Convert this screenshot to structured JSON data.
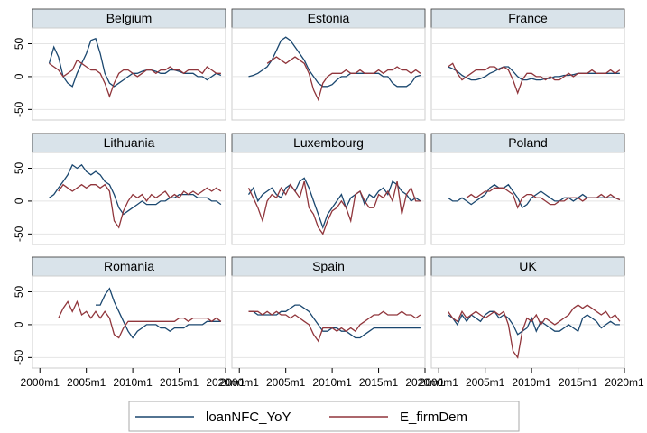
{
  "chart_data": {
    "type": "line",
    "x": [
      2001,
      2001.5,
      2002,
      2002.5,
      2003,
      2003.5,
      2004,
      2004.5,
      2005,
      2005.5,
      2006,
      2006.5,
      2007,
      2007.5,
      2008,
      2008.5,
      2009,
      2009.5,
      2010,
      2010.5,
      2011,
      2011.5,
      2012,
      2012.5,
      2013,
      2013.5,
      2014,
      2014.5,
      2015,
      2015.5,
      2016,
      2016.5,
      2017,
      2017.5,
      2018,
      2018.5,
      2019,
      2019.5
    ],
    "xlim": [
      1999.2,
      2020
    ],
    "xticks": [
      {
        "value": 2000,
        "label": "2000m1"
      },
      {
        "value": 2005,
        "label": "2005m1"
      },
      {
        "value": 2010,
        "label": "2010m1"
      },
      {
        "value": 2015,
        "label": "2015m1"
      },
      {
        "value": 2020,
        "label": "2020m1"
      }
    ],
    "ylim": [
      -66,
      74
    ],
    "yticks": [
      50,
      0,
      -50
    ],
    "grid": true,
    "series": [
      {
        "name": "loanNFC_YoY",
        "color": "#1a476f"
      },
      {
        "name": "E_firmDem",
        "color": "#90353b"
      }
    ],
    "panels": [
      {
        "title": "Belgium",
        "values": [
          [
            20,
            45,
            30,
            0,
            -10,
            -15,
            5,
            20,
            35,
            55,
            58,
            35,
            5,
            -10,
            -15,
            -10,
            -5,
            0,
            5,
            5,
            8,
            10,
            10,
            8,
            5,
            5,
            10,
            10,
            8,
            5,
            5,
            5,
            0,
            0,
            -5,
            0,
            5,
            2
          ],
          [
            20,
            15,
            10,
            0,
            5,
            10,
            25,
            20,
            15,
            10,
            10,
            5,
            -10,
            -30,
            -10,
            5,
            10,
            10,
            5,
            0,
            5,
            10,
            10,
            5,
            10,
            10,
            15,
            10,
            10,
            5,
            10,
            10,
            10,
            5,
            15,
            10,
            5,
            5
          ]
        ]
      },
      {
        "title": "Estonia",
        "values": [
          [
            0,
            2,
            5,
            10,
            15,
            25,
            40,
            55,
            60,
            55,
            45,
            35,
            25,
            10,
            0,
            -10,
            -15,
            -15,
            -12,
            -5,
            0,
            0,
            5,
            5,
            5,
            5,
            5,
            5,
            5,
            0,
            0,
            -10,
            -15,
            -15,
            -15,
            -10,
            0,
            2
          ],
          [
            null,
            null,
            null,
            null,
            20,
            25,
            30,
            25,
            20,
            25,
            30,
            25,
            20,
            5,
            -20,
            -35,
            -10,
            0,
            5,
            5,
            5,
            10,
            5,
            5,
            10,
            5,
            5,
            5,
            10,
            5,
            10,
            10,
            15,
            10,
            10,
            5,
            10,
            5
          ]
        ]
      },
      {
        "title": "France",
        "values": [
          [
            15,
            12,
            8,
            2,
            -2,
            -5,
            -5,
            -3,
            0,
            5,
            8,
            12,
            15,
            15,
            8,
            0,
            -5,
            -5,
            -3,
            -5,
            -5,
            -3,
            -3,
            0,
            0,
            2,
            2,
            3,
            5,
            5,
            5,
            5,
            5,
            5,
            5,
            5,
            5,
            5
          ],
          [
            15,
            20,
            5,
            -5,
            0,
            5,
            10,
            10,
            10,
            15,
            15,
            10,
            15,
            10,
            -5,
            -25,
            -5,
            5,
            5,
            0,
            0,
            -5,
            0,
            -5,
            -5,
            0,
            5,
            0,
            5,
            5,
            5,
            10,
            5,
            5,
            5,
            10,
            5,
            10
          ]
        ]
      },
      {
        "title": "Lithuania",
        "values": [
          [
            5,
            10,
            20,
            30,
            40,
            55,
            50,
            55,
            45,
            40,
            45,
            40,
            30,
            25,
            10,
            -10,
            -20,
            -15,
            -10,
            -5,
            0,
            -5,
            -5,
            -5,
            0,
            0,
            5,
            5,
            10,
            10,
            10,
            10,
            5,
            5,
            5,
            0,
            0,
            -5
          ],
          [
            null,
            null,
            15,
            25,
            20,
            15,
            20,
            25,
            20,
            25,
            25,
            20,
            25,
            15,
            -30,
            -40,
            -15,
            0,
            10,
            5,
            10,
            0,
            10,
            5,
            10,
            15,
            5,
            10,
            5,
            15,
            10,
            15,
            10,
            15,
            20,
            15,
            20,
            15
          ]
        ]
      },
      {
        "title": "Luxembourg",
        "values": [
          [
            10,
            20,
            0,
            10,
            15,
            20,
            10,
            5,
            20,
            25,
            15,
            30,
            35,
            20,
            0,
            -20,
            -40,
            -20,
            -10,
            0,
            10,
            -10,
            5,
            10,
            15,
            -5,
            10,
            5,
            15,
            20,
            10,
            30,
            25,
            15,
            10,
            0,
            5,
            0
          ],
          [
            20,
            5,
            -10,
            -30,
            0,
            10,
            5,
            20,
            10,
            25,
            15,
            5,
            30,
            -10,
            -20,
            -40,
            -50,
            -30,
            -15,
            -10,
            0,
            -10,
            -30,
            10,
            15,
            0,
            -10,
            -10,
            10,
            5,
            15,
            0,
            30,
            -20,
            10,
            20,
            0,
            0
          ]
        ]
      },
      {
        "title": "Poland",
        "values": [
          [
            5,
            0,
            0,
            5,
            0,
            -5,
            0,
            5,
            10,
            20,
            25,
            20,
            20,
            25,
            15,
            5,
            -10,
            -5,
            5,
            10,
            15,
            10,
            5,
            0,
            0,
            5,
            5,
            0,
            5,
            10,
            5,
            5,
            5,
            5,
            5,
            5,
            5,
            2
          ],
          [
            null,
            null,
            null,
            null,
            5,
            10,
            5,
            10,
            15,
            15,
            20,
            20,
            20,
            15,
            10,
            -10,
            5,
            10,
            10,
            5,
            5,
            0,
            -5,
            -5,
            0,
            0,
            5,
            5,
            5,
            0,
            5,
            5,
            5,
            10,
            5,
            10,
            5,
            2
          ]
        ]
      },
      {
        "title": "Romania",
        "values": [
          [
            null,
            null,
            null,
            null,
            null,
            null,
            null,
            null,
            null,
            null,
            30,
            30,
            45,
            55,
            35,
            20,
            5,
            -10,
            -20,
            -10,
            -5,
            0,
            0,
            0,
            -5,
            -5,
            -10,
            -5,
            -5,
            -5,
            0,
            0,
            0,
            0,
            5,
            5,
            5,
            5
          ],
          [
            null,
            null,
            10,
            25,
            35,
            20,
            35,
            15,
            20,
            10,
            20,
            10,
            20,
            10,
            -15,
            -20,
            -5,
            5,
            5,
            5,
            5,
            5,
            5,
            5,
            5,
            5,
            5,
            5,
            10,
            10,
            5,
            10,
            10,
            10,
            10,
            5,
            10,
            5
          ]
        ]
      },
      {
        "title": "Spain",
        "values": [
          [
            20,
            20,
            15,
            15,
            15,
            15,
            15,
            20,
            20,
            25,
            30,
            30,
            25,
            20,
            10,
            0,
            -10,
            -10,
            -5,
            -5,
            -10,
            -10,
            -15,
            -20,
            -20,
            -15,
            -10,
            -5,
            -5,
            -5,
            -5,
            -5,
            -5,
            -5,
            -5,
            -5,
            -5,
            -5
          ],
          [
            20,
            20,
            20,
            15,
            20,
            15,
            20,
            15,
            15,
            10,
            15,
            10,
            5,
            0,
            -15,
            -25,
            -5,
            -5,
            -5,
            -10,
            -5,
            -10,
            -5,
            -10,
            0,
            5,
            10,
            15,
            15,
            20,
            15,
            15,
            15,
            20,
            15,
            15,
            10,
            15
          ]
        ]
      },
      {
        "title": "UK",
        "values": [
          [
            15,
            10,
            0,
            15,
            5,
            15,
            10,
            5,
            15,
            20,
            20,
            10,
            15,
            10,
            0,
            -15,
            -10,
            -5,
            10,
            -10,
            5,
            0,
            -5,
            -10,
            -10,
            -5,
            0,
            -5,
            -10,
            10,
            15,
            10,
            5,
            -5,
            0,
            5,
            0,
            0
          ],
          [
            20,
            10,
            5,
            20,
            10,
            15,
            20,
            15,
            10,
            15,
            20,
            15,
            20,
            0,
            -40,
            -50,
            -10,
            10,
            5,
            15,
            0,
            10,
            5,
            0,
            5,
            10,
            15,
            25,
            30,
            25,
            30,
            25,
            20,
            15,
            20,
            10,
            15,
            5
          ]
        ]
      }
    ]
  }
}
